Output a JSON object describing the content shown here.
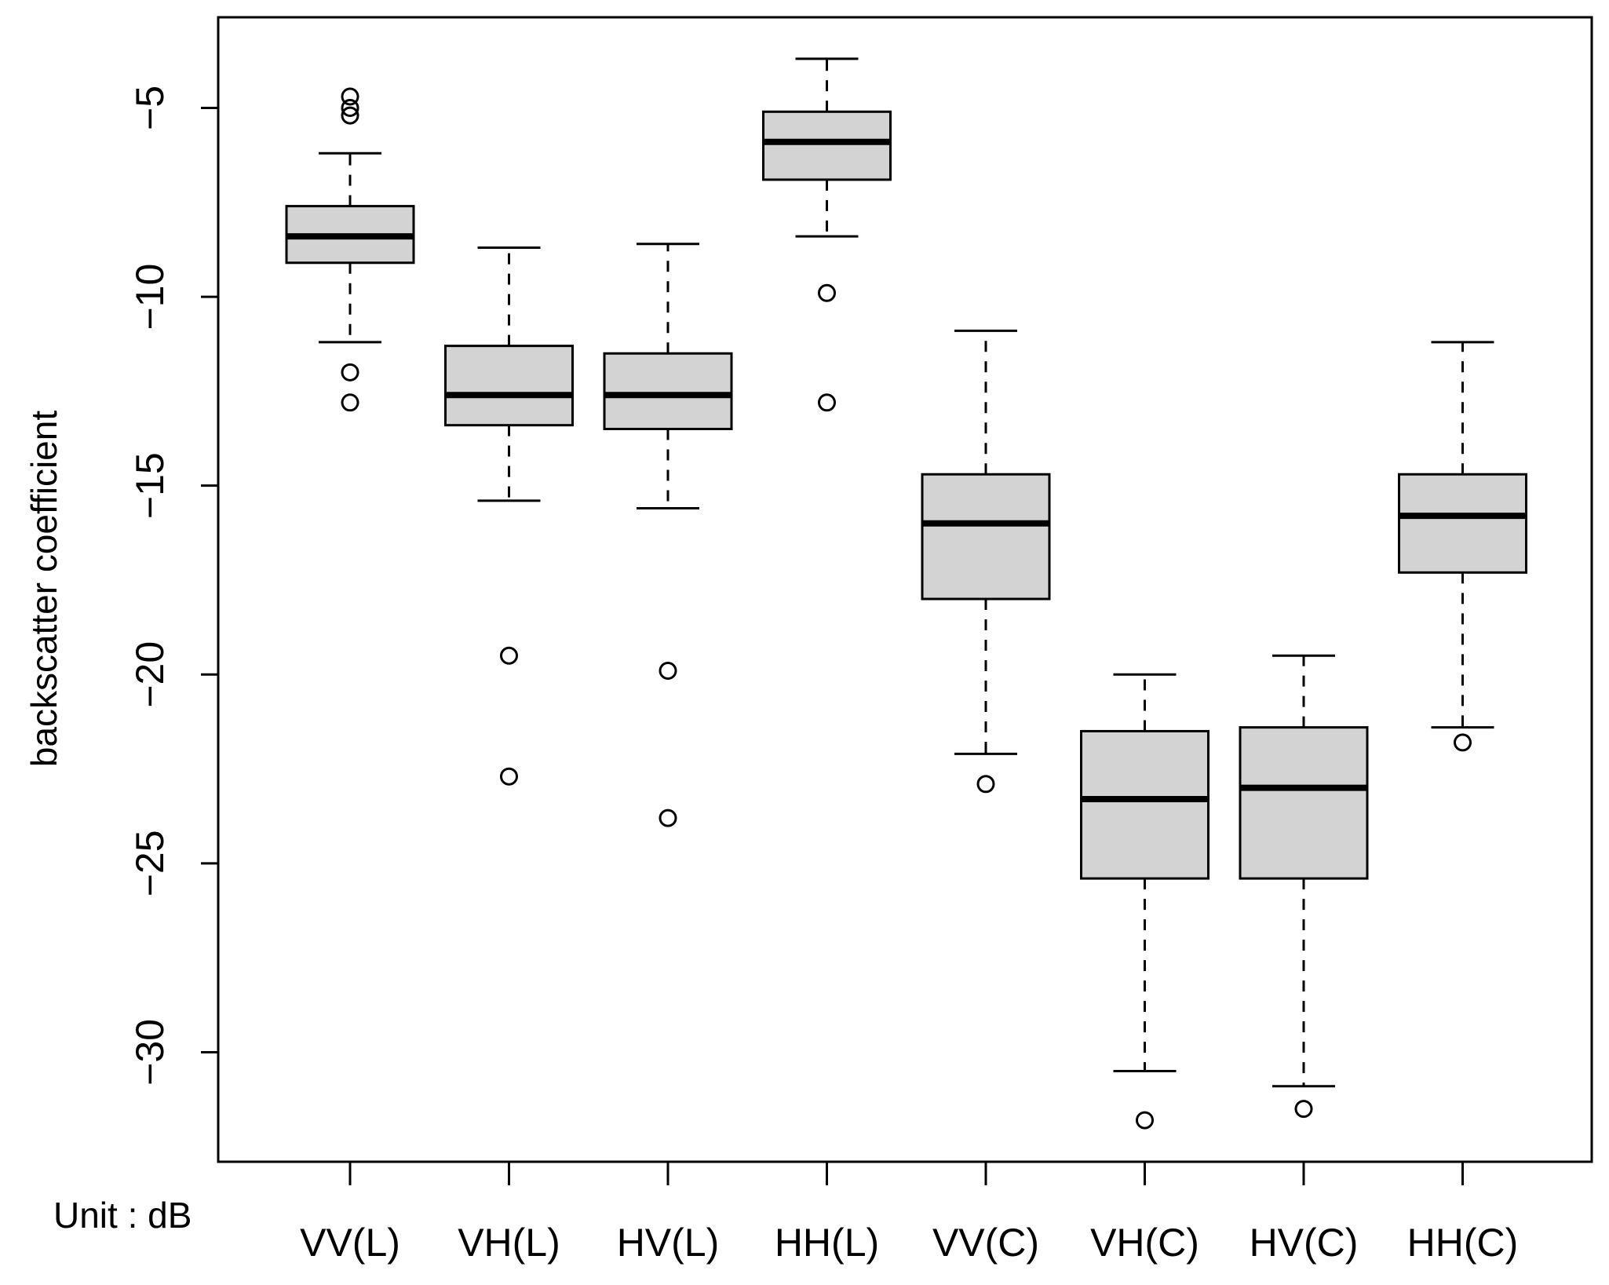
{
  "chart_data": {
    "type": "box",
    "title": "",
    "ylabel": "backscatter coefficient",
    "xlabel": "",
    "unit_note": "Unit : dB",
    "ylim": [
      -32.9,
      -2.6
    ],
    "yticks": [
      -5,
      -10,
      -15,
      -20,
      -25,
      -30
    ],
    "ytick_labels": [
      "−5",
      "−10",
      "−15",
      "−20",
      "−25",
      "−30"
    ],
    "box_fill": "#d3d3d3",
    "line_color": "#000000",
    "categories": [
      "VV(L)",
      "VH(L)",
      "HV(L)",
      "HH(L)",
      "VV(C)",
      "VH(C)",
      "HV(C)",
      "HH(C)"
    ],
    "boxes": [
      {
        "name": "VV(L)",
        "whisker_low": -11.2,
        "q1": -9.1,
        "median": -8.4,
        "q3": -7.6,
        "whisker_high": -6.2,
        "outliers": [
          -4.7,
          -5.0,
          -5.2,
          -12.0,
          -12.8
        ]
      },
      {
        "name": "VH(L)",
        "whisker_low": -15.4,
        "q1": -13.4,
        "median": -12.6,
        "q3": -11.3,
        "whisker_high": -8.7,
        "outliers": [
          -19.5,
          -22.7
        ]
      },
      {
        "name": "HV(L)",
        "whisker_low": -15.6,
        "q1": -13.5,
        "median": -12.6,
        "q3": -11.5,
        "whisker_high": -8.6,
        "outliers": [
          -19.9,
          -23.8
        ]
      },
      {
        "name": "HH(L)",
        "whisker_low": -8.4,
        "q1": -6.9,
        "median": -5.9,
        "q3": -5.1,
        "whisker_high": -3.7,
        "outliers": [
          -9.9,
          -12.8
        ]
      },
      {
        "name": "VV(C)",
        "whisker_low": -22.1,
        "q1": -18.0,
        "median": -16.0,
        "q3": -14.7,
        "whisker_high": -10.9,
        "outliers": [
          -22.9
        ]
      },
      {
        "name": "VH(C)",
        "whisker_low": -30.5,
        "q1": -25.4,
        "median": -23.3,
        "q3": -21.5,
        "whisker_high": -20.0,
        "outliers": [
          -31.8
        ]
      },
      {
        "name": "HV(C)",
        "whisker_low": -30.9,
        "q1": -25.4,
        "median": -23.0,
        "q3": -21.4,
        "whisker_high": -19.5,
        "outliers": [
          -31.5
        ]
      },
      {
        "name": "HH(C)",
        "whisker_low": -21.4,
        "q1": -17.3,
        "median": -15.8,
        "q3": -14.7,
        "whisker_high": -11.2,
        "outliers": [
          -21.8
        ]
      }
    ]
  }
}
